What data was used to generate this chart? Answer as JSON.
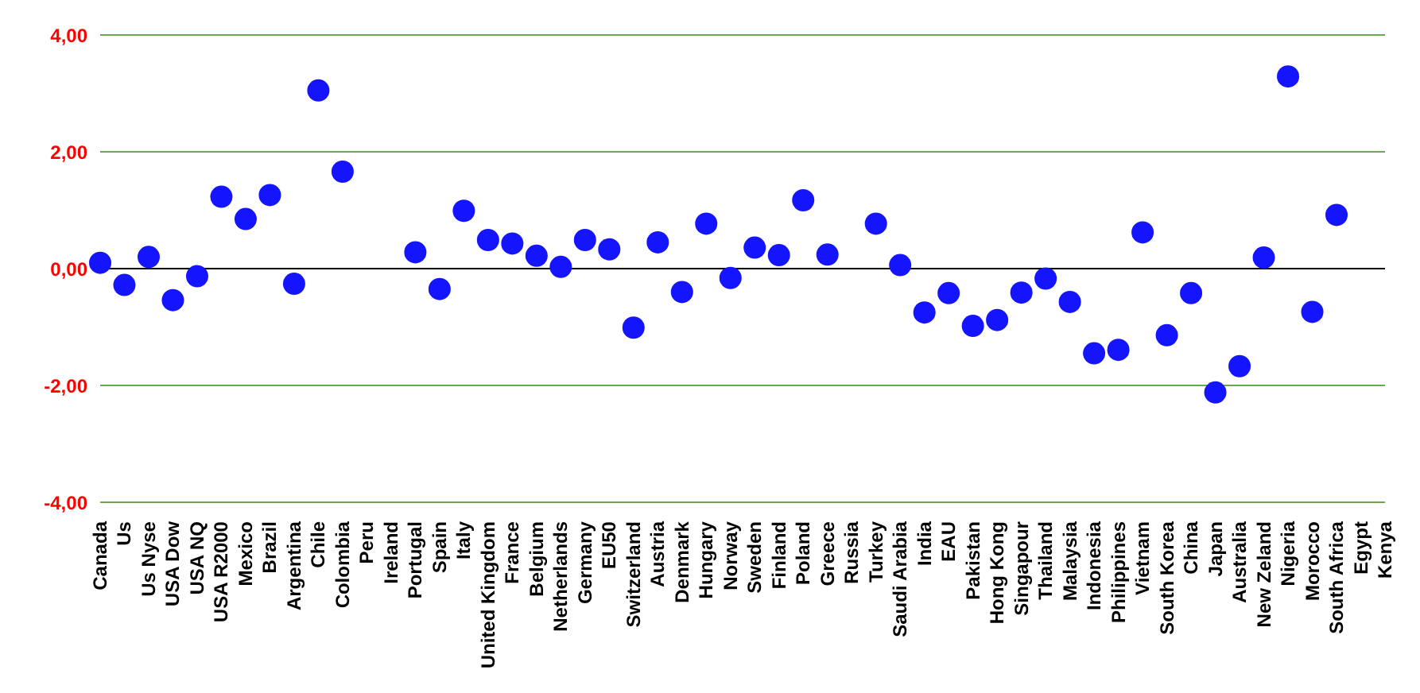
{
  "chart_data": {
    "type": "scatter",
    "categories": [
      "Canada",
      "Us",
      "Us Nyse",
      "USA Dow",
      "USA NQ",
      "USA R2000",
      "Mexico",
      "Brazil",
      "Argentina",
      "Chile",
      "Colombia",
      "Peru",
      "Ireland",
      "Portugal",
      "Spain",
      "Italy",
      "United Kingdom",
      "France",
      "Belgium",
      "Netherlands",
      "Germany",
      "EU50",
      "Switzerland",
      "Austria",
      "Denmark",
      "Hungary",
      "Norway",
      "Sweden",
      "Finland",
      "Poland",
      "Greece",
      "Russia",
      "Turkey",
      "Saudi Arabia",
      "India",
      "EAU",
      "Pakistan",
      "Hong Kong",
      "Singapour",
      "Thailand",
      "Malaysia",
      "Indonesia",
      "Philippines",
      "Vietnam",
      "South Korea",
      "China",
      "Japan",
      "Australia",
      "New Zeland",
      "Nigeria",
      "Morocco",
      "South Africa",
      "Egypt",
      "Kenya"
    ],
    "series": [
      {
        "color": "#1414ff",
        "values": [
          0.1,
          -0.28,
          0.2,
          -0.54,
          -0.13,
          1.23,
          0.85,
          1.26,
          -0.26,
          3.05,
          1.66,
          null,
          null,
          0.28,
          -0.35,
          0.99,
          0.49,
          0.43,
          0.22,
          0.03,
          0.49,
          0.33,
          -1.01,
          0.45,
          -0.4,
          0.77,
          -0.16,
          0.36,
          0.23,
          1.17,
          0.24,
          null,
          0.77,
          0.06,
          -0.75,
          -0.42,
          -0.98,
          -0.88,
          -0.41,
          -0.17,
          -0.57,
          -1.45,
          -1.39,
          0.62,
          -1.14,
          -0.42,
          -2.12,
          -1.67,
          0.19,
          3.29,
          -0.74,
          0.92,
          null,
          null
        ]
      }
    ],
    "ylim": [
      -4,
      4
    ],
    "yticks": [
      {
        "value": -4,
        "label": "-4,00"
      },
      {
        "value": -2,
        "label": "-2,00"
      },
      {
        "value": 0,
        "label": "0,00"
      },
      {
        "value": 2,
        "label": "2,00"
      },
      {
        "value": 4,
        "label": "4,00"
      }
    ],
    "grid": "y",
    "marker": "circle",
    "legend": false,
    "ref_lines": [
      {
        "axis": "y",
        "value": 0,
        "color": "#000000"
      }
    ]
  }
}
